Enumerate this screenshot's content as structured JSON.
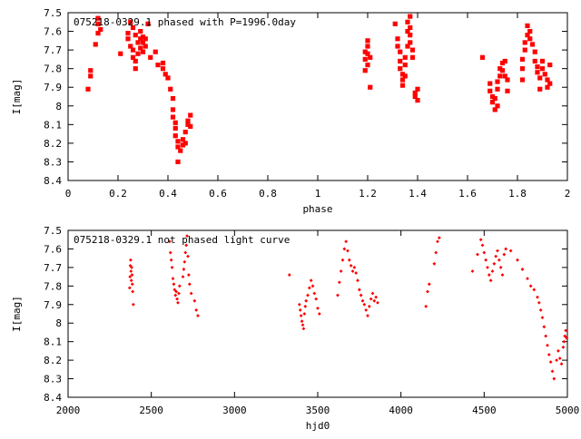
{
  "chart_data": [
    {
      "type": "scatter",
      "title": "075218-0329.1 phased with P=1996.0day",
      "xlabel": "phase",
      "ylabel": "I[mag]",
      "xlim": [
        0,
        2
      ],
      "ylim": [
        8.4,
        7.5
      ],
      "y_inverted": true,
      "x_ticks": [
        0,
        0.2,
        0.4,
        0.6,
        0.8,
        1,
        1.2,
        1.4,
        1.6,
        1.8,
        2
      ],
      "y_ticks": [
        7.5,
        7.6,
        7.7,
        7.8,
        7.9,
        8,
        8.1,
        8.2,
        8.3,
        8.4
      ],
      "marker_color": "#ff0000",
      "grid": false,
      "points": [
        [
          0.08,
          7.91
        ],
        [
          0.09,
          7.84
        ],
        [
          0.09,
          7.81
        ],
        [
          0.11,
          7.67
        ],
        [
          0.12,
          7.61
        ],
        [
          0.12,
          7.56
        ],
        [
          0.12,
          7.53
        ],
        [
          0.13,
          7.59
        ],
        [
          0.21,
          7.72
        ],
        [
          0.24,
          7.64
        ],
        [
          0.24,
          7.61
        ],
        [
          0.25,
          7.55
        ],
        [
          0.25,
          7.68
        ],
        [
          0.26,
          7.58
        ],
        [
          0.26,
          7.7
        ],
        [
          0.26,
          7.74
        ],
        [
          0.27,
          7.76
        ],
        [
          0.27,
          7.8
        ],
        [
          0.27,
          7.62
        ],
        [
          0.28,
          7.66
        ],
        [
          0.28,
          7.72
        ],
        [
          0.29,
          7.64
        ],
        [
          0.29,
          7.69
        ],
        [
          0.29,
          7.6
        ],
        [
          0.3,
          7.63
        ],
        [
          0.3,
          7.66
        ],
        [
          0.3,
          7.71
        ],
        [
          0.31,
          7.64
        ],
        [
          0.31,
          7.68
        ],
        [
          0.32,
          7.56
        ],
        [
          0.33,
          7.74
        ],
        [
          0.35,
          7.71
        ],
        [
          0.36,
          7.78
        ],
        [
          0.38,
          7.8
        ],
        [
          0.38,
          7.77
        ],
        [
          0.39,
          7.83
        ],
        [
          0.4,
          7.85
        ],
        [
          0.41,
          7.91
        ],
        [
          0.42,
          7.96
        ],
        [
          0.42,
          8.02
        ],
        [
          0.42,
          8.06
        ],
        [
          0.43,
          8.09
        ],
        [
          0.43,
          8.12
        ],
        [
          0.43,
          8.16
        ],
        [
          0.44,
          8.19
        ],
        [
          0.44,
          8.22
        ],
        [
          0.45,
          8.24
        ],
        [
          0.44,
          8.3
        ],
        [
          0.46,
          8.21
        ],
        [
          0.46,
          8.18
        ],
        [
          0.47,
          8.2
        ],
        [
          0.47,
          8.14
        ],
        [
          0.48,
          8.1
        ],
        [
          0.48,
          8.08
        ],
        [
          0.49,
          8.05
        ],
        [
          0.49,
          8.11
        ],
        [
          1.19,
          7.71
        ],
        [
          1.19,
          7.81
        ],
        [
          1.19,
          7.75
        ],
        [
          1.2,
          7.65
        ],
        [
          1.2,
          7.68
        ],
        [
          1.2,
          7.72
        ],
        [
          1.2,
          7.78
        ],
        [
          1.21,
          7.74
        ],
        [
          1.21,
          7.9
        ],
        [
          1.31,
          7.56
        ],
        [
          1.32,
          7.64
        ],
        [
          1.32,
          7.68
        ],
        [
          1.33,
          7.71
        ],
        [
          1.33,
          7.76
        ],
        [
          1.33,
          7.8
        ],
        [
          1.34,
          7.83
        ],
        [
          1.34,
          7.86
        ],
        [
          1.34,
          7.89
        ],
        [
          1.35,
          7.78
        ],
        [
          1.35,
          7.84
        ],
        [
          1.35,
          7.74
        ],
        [
          1.36,
          7.68
        ],
        [
          1.36,
          7.6
        ],
        [
          1.36,
          7.55
        ],
        [
          1.37,
          7.52
        ],
        [
          1.37,
          7.58
        ],
        [
          1.37,
          7.62
        ],
        [
          1.37,
          7.66
        ],
        [
          1.38,
          7.7
        ],
        [
          1.38,
          7.74
        ],
        [
          1.39,
          7.93
        ],
        [
          1.39,
          7.95
        ],
        [
          1.4,
          7.97
        ],
        [
          1.4,
          7.91
        ],
        [
          1.66,
          7.74
        ],
        [
          1.69,
          7.88
        ],
        [
          1.69,
          7.92
        ],
        [
          1.7,
          7.95
        ],
        [
          1.7,
          7.98
        ],
        [
          1.71,
          8.02
        ],
        [
          1.71,
          7.96
        ],
        [
          1.72,
          7.91
        ],
        [
          1.72,
          7.87
        ],
        [
          1.72,
          8.0
        ],
        [
          1.73,
          7.84
        ],
        [
          1.73,
          7.8
        ],
        [
          1.74,
          7.77
        ],
        [
          1.74,
          7.81
        ],
        [
          1.75,
          7.76
        ],
        [
          1.75,
          7.84
        ],
        [
          1.76,
          7.86
        ],
        [
          1.76,
          7.92
        ],
        [
          1.82,
          7.86
        ],
        [
          1.82,
          7.8
        ],
        [
          1.82,
          7.75
        ],
        [
          1.83,
          7.7
        ],
        [
          1.83,
          7.66
        ],
        [
          1.84,
          7.62
        ],
        [
          1.84,
          7.57
        ],
        [
          1.85,
          7.6
        ],
        [
          1.85,
          7.64
        ],
        [
          1.86,
          7.67
        ],
        [
          1.87,
          7.71
        ],
        [
          1.87,
          7.76
        ],
        [
          1.88,
          7.79
        ],
        [
          1.88,
          7.82
        ],
        [
          1.89,
          7.85
        ],
        [
          1.89,
          7.91
        ],
        [
          1.9,
          7.8
        ],
        [
          1.9,
          7.76
        ],
        [
          1.91,
          7.83
        ],
        [
          1.92,
          7.86
        ],
        [
          1.92,
          7.9
        ],
        [
          1.93,
          7.78
        ],
        [
          1.93,
          7.88
        ]
      ]
    },
    {
      "type": "scatter",
      "title": "075218-0329.1 not phased light curve",
      "xlabel": "hjd0",
      "ylabel": "I[mag]",
      "xlim": [
        2000,
        5000
      ],
      "ylim": [
        8.4,
        7.5
      ],
      "y_inverted": true,
      "x_ticks": [
        2000,
        2500,
        3000,
        3500,
        4000,
        4500,
        5000
      ],
      "y_ticks": [
        7.5,
        7.6,
        7.7,
        7.8,
        7.9,
        8,
        8.1,
        8.2,
        8.3,
        8.4
      ],
      "marker_color": "#ff0000",
      "grid": false,
      "points": [
        [
          2370,
          7.81
        ],
        [
          2372,
          7.75
        ],
        [
          2374,
          7.69
        ],
        [
          2376,
          7.66
        ],
        [
          2378,
          7.72
        ],
        [
          2380,
          7.77
        ],
        [
          2382,
          7.7
        ],
        [
          2384,
          7.74
        ],
        [
          2386,
          7.79
        ],
        [
          2388,
          7.83
        ],
        [
          2392,
          7.9
        ],
        [
          2610,
          7.56
        ],
        [
          2615,
          7.62
        ],
        [
          2620,
          7.66
        ],
        [
          2625,
          7.7
        ],
        [
          2630,
          7.76
        ],
        [
          2635,
          7.79
        ],
        [
          2640,
          7.82
        ],
        [
          2645,
          7.85
        ],
        [
          2650,
          7.83
        ],
        [
          2655,
          7.87
        ],
        [
          2660,
          7.89
        ],
        [
          2665,
          7.84
        ],
        [
          2670,
          7.8
        ],
        [
          2690,
          7.75
        ],
        [
          2695,
          7.71
        ],
        [
          2700,
          7.67
        ],
        [
          2705,
          7.62
        ],
        [
          2710,
          7.58
        ],
        [
          2715,
          7.53
        ],
        [
          2720,
          7.64
        ],
        [
          2725,
          7.74
        ],
        [
          2730,
          7.79
        ],
        [
          2740,
          7.84
        ],
        [
          2760,
          7.88
        ],
        [
          2770,
          7.93
        ],
        [
          2780,
          7.96
        ],
        [
          3330,
          7.74
        ],
        [
          3390,
          7.9
        ],
        [
          3395,
          7.93
        ],
        [
          3400,
          7.96
        ],
        [
          3405,
          7.99
        ],
        [
          3410,
          8.01
        ],
        [
          3415,
          8.03
        ],
        [
          3420,
          7.95
        ],
        [
          3425,
          7.91
        ],
        [
          3430,
          7.88
        ],
        [
          3440,
          7.85
        ],
        [
          3450,
          7.81
        ],
        [
          3460,
          7.77
        ],
        [
          3470,
          7.8
        ],
        [
          3480,
          7.84
        ],
        [
          3490,
          7.87
        ],
        [
          3500,
          7.92
        ],
        [
          3510,
          7.95
        ],
        [
          3620,
          7.85
        ],
        [
          3630,
          7.78
        ],
        [
          3640,
          7.72
        ],
        [
          3650,
          7.66
        ],
        [
          3660,
          7.6
        ],
        [
          3670,
          7.56
        ],
        [
          3680,
          7.61
        ],
        [
          3690,
          7.66
        ],
        [
          3700,
          7.69
        ],
        [
          3710,
          7.72
        ],
        [
          3720,
          7.7
        ],
        [
          3730,
          7.73
        ],
        [
          3740,
          7.77
        ],
        [
          3750,
          7.82
        ],
        [
          3760,
          7.85
        ],
        [
          3770,
          7.88
        ],
        [
          3780,
          7.9
        ],
        [
          3790,
          7.93
        ],
        [
          3800,
          7.96
        ],
        [
          3810,
          7.91
        ],
        [
          3820,
          7.87
        ],
        [
          3830,
          7.84
        ],
        [
          3840,
          7.88
        ],
        [
          3850,
          7.86
        ],
        [
          3860,
          7.89
        ],
        [
          4150,
          7.91
        ],
        [
          4160,
          7.83
        ],
        [
          4170,
          7.79
        ],
        [
          4200,
          7.68
        ],
        [
          4210,
          7.62
        ],
        [
          4220,
          7.56
        ],
        [
          4230,
          7.54
        ],
        [
          4430,
          7.72
        ],
        [
          4460,
          7.63
        ],
        [
          4480,
          7.55
        ],
        [
          4490,
          7.58
        ],
        [
          4500,
          7.62
        ],
        [
          4510,
          7.66
        ],
        [
          4520,
          7.7
        ],
        [
          4530,
          7.74
        ],
        [
          4540,
          7.77
        ],
        [
          4550,
          7.72
        ],
        [
          4560,
          7.68
        ],
        [
          4570,
          7.64
        ],
        [
          4580,
          7.61
        ],
        [
          4590,
          7.66
        ],
        [
          4600,
          7.7
        ],
        [
          4610,
          7.74
        ],
        [
          4620,
          7.63
        ],
        [
          4630,
          7.6
        ],
        [
          4660,
          7.61
        ],
        [
          4700,
          7.66
        ],
        [
          4730,
          7.71
        ],
        [
          4760,
          7.76
        ],
        [
          4780,
          7.8
        ],
        [
          4800,
          7.82
        ],
        [
          4820,
          7.86
        ],
        [
          4830,
          7.89
        ],
        [
          4840,
          7.93
        ],
        [
          4850,
          7.97
        ],
        [
          4860,
          8.02
        ],
        [
          4870,
          8.07
        ],
        [
          4880,
          8.12
        ],
        [
          4890,
          8.17
        ],
        [
          4900,
          8.21
        ],
        [
          4910,
          8.26
        ],
        [
          4920,
          8.3
        ],
        [
          4935,
          8.2
        ],
        [
          4945,
          8.15
        ],
        [
          4955,
          8.19
        ],
        [
          4965,
          8.22
        ],
        [
          4975,
          8.13
        ],
        [
          4980,
          8.1
        ],
        [
          4985,
          8.07
        ],
        [
          4990,
          8.04
        ],
        [
          4995,
          8.08
        ]
      ]
    }
  ]
}
